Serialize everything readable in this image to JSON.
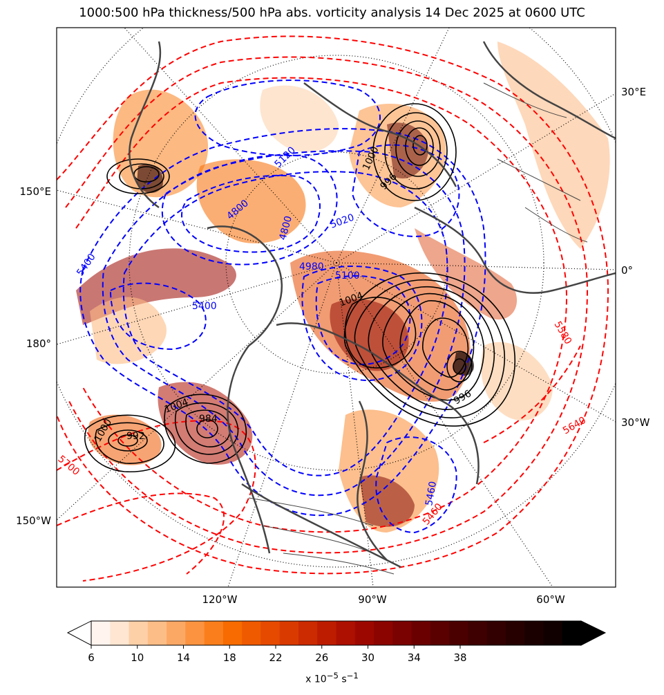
{
  "title": "1000:500 hPa thickness/500 hPa abs. vorticity analysis 14 Dec 2025 at 0600 UTC",
  "longitude_labels_right": [
    "30°E",
    "0°",
    "30°W"
  ],
  "longitude_labels_left": [
    "150°E",
    "180°",
    "150°W"
  ],
  "longitude_labels_bottom": [
    "120°W",
    "90°W",
    "60°W"
  ],
  "thickness_labels_blue": [
    "5400",
    "5400",
    "4800",
    "4800",
    "5020",
    "4980",
    "5100",
    "5120",
    "5460"
  ],
  "thickness_labels_red": [
    "5700",
    "5640",
    "5460",
    "5580"
  ],
  "pressure_labels_black": [
    "1000",
    "1004",
    "1000",
    "992",
    "984",
    "996",
    "1004",
    "996"
  ],
  "colorbar": {
    "ticks": [
      "6",
      "10",
      "14",
      "18",
      "22",
      "26",
      "30",
      "34",
      "38"
    ],
    "units_label": "x 10",
    "units_exponent": "−5",
    "units_tail": " s",
    "units_tail_exponent": "−1",
    "colors": [
      "#fff5ee",
      "#fee6d2",
      "#fdd0a8",
      "#fdbd86",
      "#fca865",
      "#fb9340",
      "#fa7f1c",
      "#f76b00",
      "#ef5a00",
      "#e54a00",
      "#d93a00",
      "#cc2a00",
      "#bd1c00",
      "#ad1000",
      "#9c0800",
      "#8b0400",
      "#7a0200",
      "#6a0100",
      "#5a0000",
      "#4b0000",
      "#3e0000",
      "#320000",
      "#260000",
      "#1b0000",
      "#100000",
      "#000000"
    ]
  },
  "colors": {
    "thickness_cold": "#0000ff",
    "thickness_warm": "#ff0000",
    "mslp": "#000000",
    "coast": "#444444",
    "marker": "#c000c0"
  }
}
